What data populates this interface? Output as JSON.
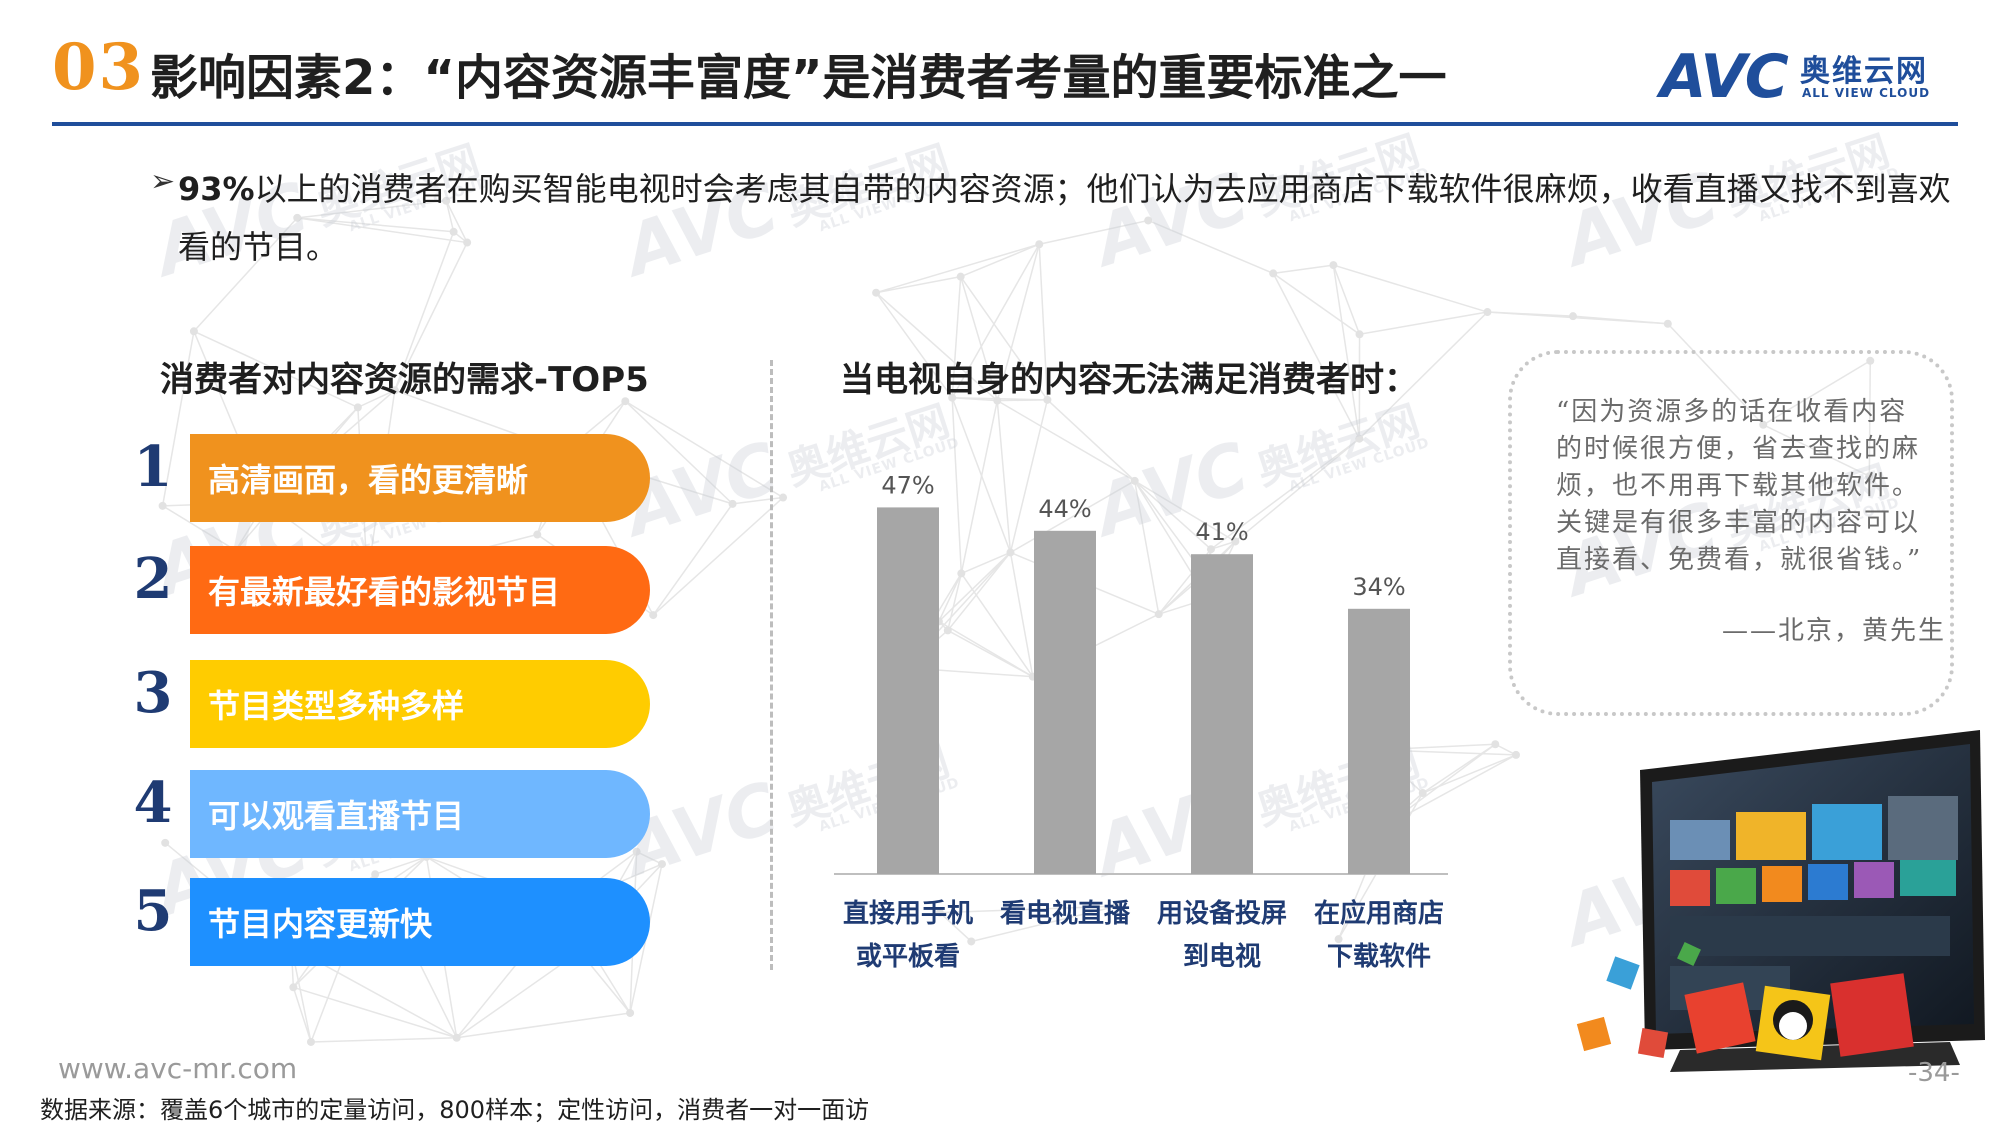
{
  "header": {
    "section_number": "03",
    "title": "影响因素2：“内容资源丰富度”是消费者考量的重要标准之一",
    "logo": {
      "mark": "AVC",
      "name_cn": "奥维云网",
      "name_en": "ALL VIEW CLOUD"
    }
  },
  "intro": {
    "bullet_icon": "arrow-right-icon",
    "highlight": "93%",
    "text": "以上的消费者在购买智能电视时会考虑其自带的内容资源；他们认为去应用商店下载软件很麻烦，收看直播又找不到喜欢看的节目。"
  },
  "left_panel": {
    "title": "消费者对内容资源的需求-TOP5",
    "items": [
      {
        "rank": "1",
        "label": "高清画面，看的更清晰",
        "color": "#f0921e"
      },
      {
        "rank": "2",
        "label": "有最新最好看的影视节目",
        "color": "#ff6a13"
      },
      {
        "rank": "3",
        "label": "节目类型多种多样",
        "color": "#ffcc00"
      },
      {
        "rank": "4",
        "label": "可以观看直播节目",
        "color": "#6fb7ff"
      },
      {
        "rank": "5",
        "label": "节目内容更新快",
        "color": "#1e90ff"
      }
    ]
  },
  "chart_title": "当电视自身的内容无法满足消费者时：",
  "chart_data": {
    "type": "bar",
    "title": "当电视自身的内容无法满足消费者时：",
    "categories": [
      [
        "直接用手机",
        "或平板看"
      ],
      [
        "看电视直播"
      ],
      [
        "用设备投屏",
        "到电视"
      ],
      [
        "在应用商店",
        "下载软件"
      ]
    ],
    "values": [
      47,
      44,
      41,
      34
    ],
    "data_labels": [
      "47%",
      "44%",
      "41%",
      "34%"
    ],
    "ylim": [
      0,
      50
    ],
    "bar_color": "#a6a6a6",
    "grid": false,
    "xlabel": "",
    "ylabel": ""
  },
  "quote": {
    "text": "“因为资源多的话在收看内容的时候很方便，省去查找的麻烦，也不用再下载其他软件。关键是有很多丰富的内容可以直接看、免费看，就很省钱。”",
    "author": "——北京，黄先生"
  },
  "tv_illustration_icon": "smart-tv-icon",
  "footer": {
    "website": "www.avc-mr.com",
    "source": "数据来源：覆盖6个城市的定量访问，800样本；定性访问，消费者一对一面访",
    "page_number": "-34-"
  },
  "watermark": {
    "mark": "AVC",
    "name_cn": "奥维云网",
    "name_en": "ALL VIEW CLOUD"
  },
  "colors": {
    "accent_orange": "#f0921e",
    "brand_blue": "#1f4e9b",
    "rank_num": "#1f3b73",
    "bar_gray": "#a6a6a6"
  }
}
